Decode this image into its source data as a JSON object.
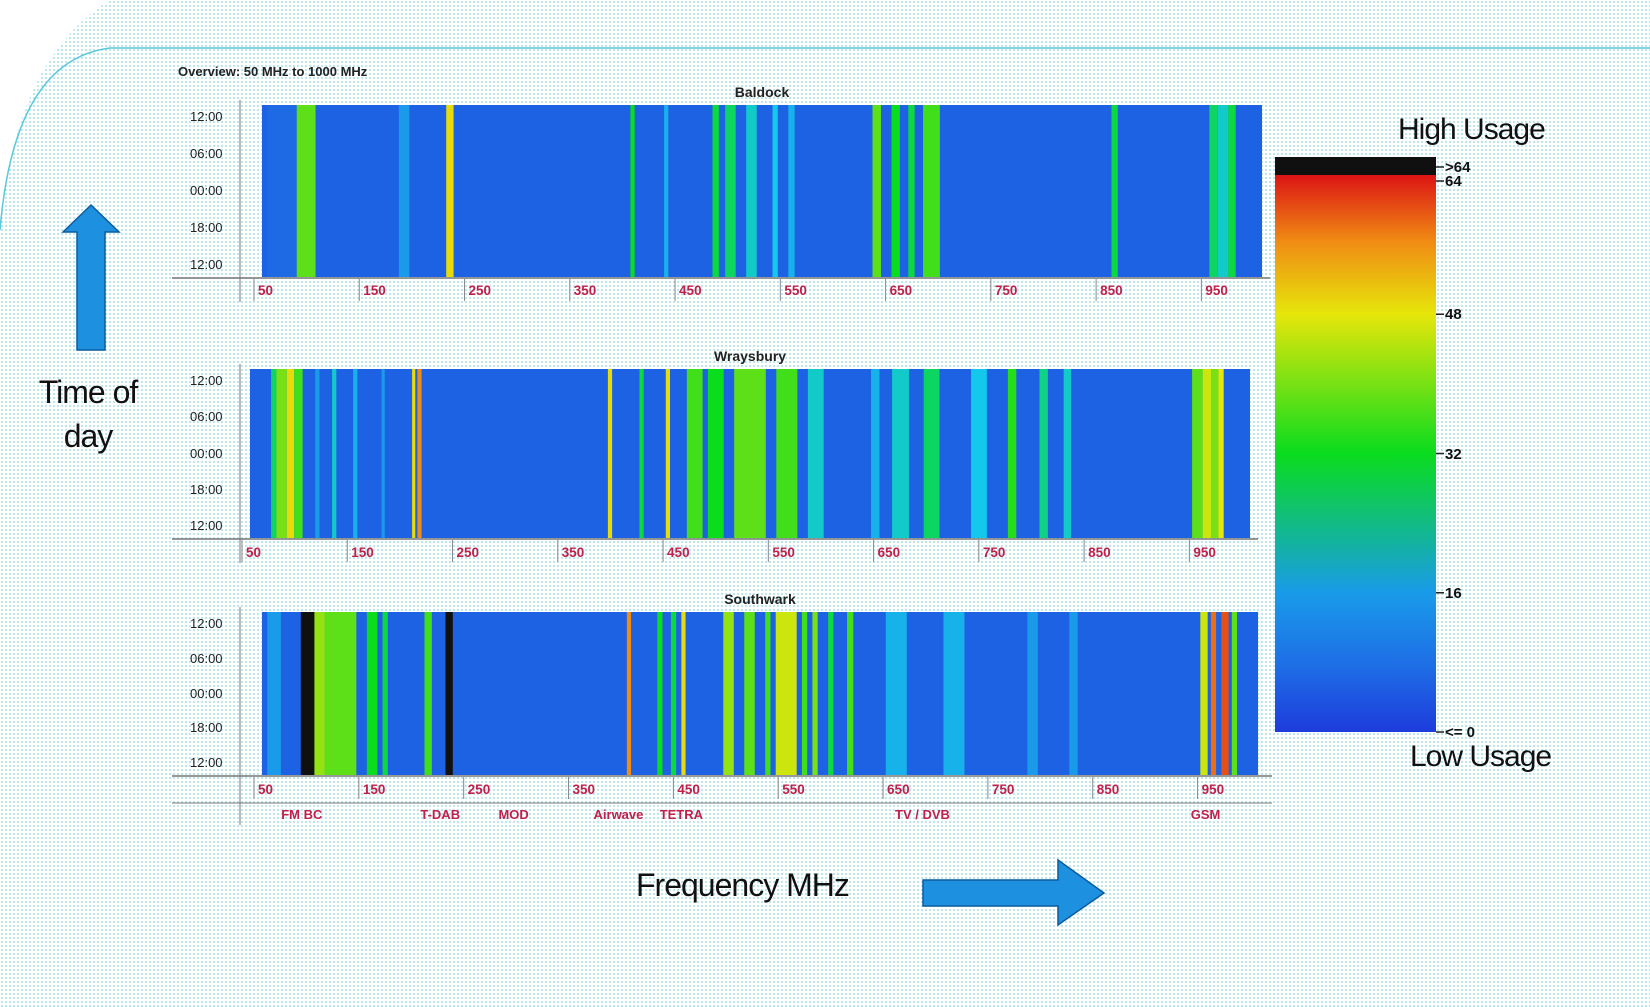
{
  "chart_data": {
    "type": "heatmap",
    "title": "Overview:  50 MHz to 1000 MHz",
    "xlabel": "Frequency MHz",
    "ylabel": "Time of day",
    "x_range": [
      50,
      1000
    ],
    "x_ticks": [
      "50",
      "150",
      "250",
      "350",
      "450",
      "550",
      "650",
      "750",
      "850",
      "950"
    ],
    "y_ticks": [
      "12:00",
      "06:00",
      "00:00",
      "18:00",
      "12:00"
    ],
    "panels": [
      {
        "name": "Baldock",
        "bands": [
          {
            "f": [
              55,
              83
            ],
            "v": 11
          },
          {
            "f": [
              83,
              101
            ],
            "v": 38
          },
          {
            "f": [
              101,
              130
            ],
            "v": 9
          },
          {
            "f": [
              180,
              190
            ],
            "v": 16
          },
          {
            "f": [
              225,
              232
            ],
            "v": 49
          },
          {
            "f": [
              400,
              404
            ],
            "v": 32
          },
          {
            "f": [
              432,
              436
            ],
            "v": 18
          },
          {
            "f": [
              478,
              484
            ],
            "v": 30
          },
          {
            "f": [
              490,
              500
            ],
            "v": 28
          },
          {
            "f": [
              510,
              520
            ],
            "v": 22
          },
          {
            "f": [
              535,
              540
            ],
            "v": 20
          },
          {
            "f": [
              550,
              556
            ],
            "v": 18
          },
          {
            "f": [
              630,
              638
            ],
            "v": 38
          },
          {
            "f": [
              648,
              656
            ],
            "v": 32
          },
          {
            "f": [
              664,
              670
            ],
            "v": 30
          },
          {
            "f": [
              678,
              694
            ],
            "v": 36
          },
          {
            "f": [
              857,
              863
            ],
            "v": 30
          },
          {
            "f": [
              950,
              958
            ],
            "v": 28
          },
          {
            "f": [
              958,
              968
            ],
            "v": 22
          },
          {
            "f": [
              968,
              975
            ],
            "v": 30
          }
        ]
      },
      {
        "name": "Wraysbury",
        "bands": [
          {
            "f": [
              70,
              75
            ],
            "v": 28
          },
          {
            "f": [
              75,
              85
            ],
            "v": 40
          },
          {
            "f": [
              85,
              92
            ],
            "v": 49
          },
          {
            "f": [
              92,
              100
            ],
            "v": 36
          },
          {
            "f": [
              112,
              116
            ],
            "v": 16
          },
          {
            "f": [
              128,
              132
            ],
            "v": 22
          },
          {
            "f": [
              148,
              152
            ],
            "v": 18
          },
          {
            "f": [
              175,
              178
            ],
            "v": 16
          },
          {
            "f": [
              204,
              207
            ],
            "v": 49
          },
          {
            "f": [
              209,
              213
            ],
            "v": 56
          },
          {
            "f": [
              390,
              394
            ],
            "v": 49
          },
          {
            "f": [
              420,
              424
            ],
            "v": 30
          },
          {
            "f": [
              445,
              449
            ],
            "v": 49
          },
          {
            "f": [
              465,
              480
            ],
            "v": 36
          },
          {
            "f": [
              485,
              500
            ],
            "v": 32
          },
          {
            "f": [
              510,
              540
            ],
            "v": 38
          },
          {
            "f": [
              550,
              570
            ],
            "v": 36
          },
          {
            "f": [
              580,
              595
            ],
            "v": 22
          },
          {
            "f": [
              640,
              648
            ],
            "v": 18
          },
          {
            "f": [
              660,
              676
            ],
            "v": 22
          },
          {
            "f": [
              690,
              705
            ],
            "v": 28
          },
          {
            "f": [
              735,
              750
            ],
            "v": 20
          },
          {
            "f": [
              770,
              778
            ],
            "v": 34
          },
          {
            "f": [
              800,
              808
            ],
            "v": 26
          },
          {
            "f": [
              823,
              830
            ],
            "v": 22
          },
          {
            "f": [
              945,
              955
            ],
            "v": 38
          },
          {
            "f": [
              955,
              963
            ],
            "v": 46
          },
          {
            "f": [
              963,
              970
            ],
            "v": 40
          },
          {
            "f": [
              970,
              975
            ],
            "v": 48
          }
        ]
      },
      {
        "name": "Southwark",
        "bands": [
          {
            "f": [
              55,
              68
            ],
            "v": 16
          },
          {
            "f": [
              87,
              100
            ],
            "v": 66
          },
          {
            "f": [
              100,
              110
            ],
            "v": 42
          },
          {
            "f": [
              110,
              140
            ],
            "v": 38
          },
          {
            "f": [
              150,
              160
            ],
            "v": 32
          },
          {
            "f": [
              165,
              170
            ],
            "v": 30
          },
          {
            "f": [
              205,
              212
            ],
            "v": 36
          },
          {
            "f": [
              225,
              232
            ],
            "v": 66
          },
          {
            "f": [
              398,
              402
            ],
            "v": 56
          },
          {
            "f": [
              427,
              432
            ],
            "v": 32
          },
          {
            "f": [
              440,
              445
            ],
            "v": 30
          },
          {
            "f": [
              450,
              454
            ],
            "v": 49
          },
          {
            "f": [
              490,
              500
            ],
            "v": 42
          },
          {
            "f": [
              510,
              520
            ],
            "v": 38
          },
          {
            "f": [
              530,
              535
            ],
            "v": 36
          },
          {
            "f": [
              540,
              560
            ],
            "v": 46
          },
          {
            "f": [
              565,
              570
            ],
            "v": 36
          },
          {
            "f": [
              575,
              580
            ],
            "v": 40
          },
          {
            "f": [
              590,
              595
            ],
            "v": 30
          },
          {
            "f": [
              608,
              614
            ],
            "v": 36
          },
          {
            "f": [
              645,
              665
            ],
            "v": 18
          },
          {
            "f": [
              700,
              720
            ],
            "v": 18
          },
          {
            "f": [
              780,
              790
            ],
            "v": 16
          },
          {
            "f": [
              820,
              828
            ],
            "v": 16
          },
          {
            "f": [
              945,
              952
            ],
            "v": 46
          },
          {
            "f": [
              955,
              960
            ],
            "v": 58
          },
          {
            "f": [
              965,
              972
            ],
            "v": 60
          },
          {
            "f": [
              975,
              980
            ],
            "v": 38
          }
        ]
      }
    ],
    "band_labels": [
      {
        "label": "FM BC",
        "freq": 88
      },
      {
        "label": "T-DAB",
        "freq": 220
      },
      {
        "label": "MOD",
        "freq": 290
      },
      {
        "label": "Airwave",
        "freq": 390
      },
      {
        "label": "TETRA",
        "freq": 450
      },
      {
        "label": "TV / DVB",
        "freq": 680
      },
      {
        "label": "GSM",
        "freq": 950
      }
    ],
    "colorbar": {
      "min": 0,
      "max": 64,
      "ticks": [
        ">64",
        "64",
        "48",
        "32",
        "16",
        "<= 0"
      ],
      "top_label": "High Usage",
      "bottom_label": "Low Usage"
    }
  }
}
